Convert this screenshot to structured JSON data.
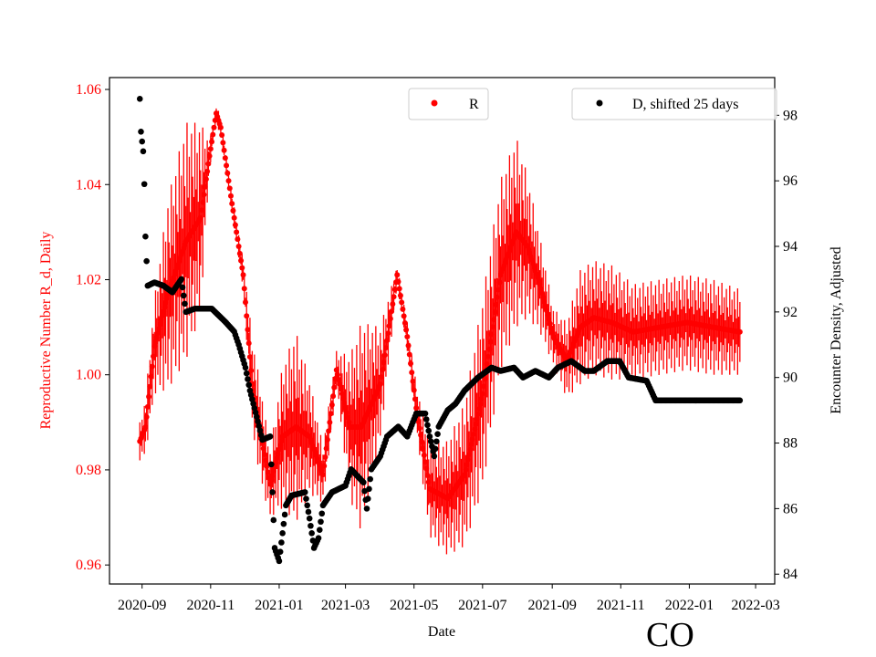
{
  "chart_data": {
    "type": "scatter",
    "xlabel": "Date",
    "ylabel_left": "Reproductive Number R_d, Daily",
    "ylabel_right": "Encounter Density, Adjusted",
    "annotation": "CO",
    "xlim": [
      "2020-08-03",
      "2022-03-18"
    ],
    "ylim_left": [
      0.956,
      1.0625
    ],
    "ylim_right": [
      83.7,
      99.15
    ],
    "x_ticks": [
      "2020-09",
      "2020-11",
      "2021-01",
      "2021-03",
      "2021-05",
      "2021-07",
      "2021-09",
      "2021-11",
      "2022-01",
      "2022-03"
    ],
    "y_ticks_left": [
      "0.96",
      "0.98",
      "1.00",
      "1.02",
      "1.04",
      "1.06"
    ],
    "y_ticks_right": [
      "84",
      "86",
      "88",
      "90",
      "92",
      "94",
      "96",
      "98"
    ],
    "colors": {
      "R": "#ff0000",
      "D": "#000000",
      "left_axis": "#ff0000"
    },
    "legend": [
      {
        "label": "R",
        "placement": "upper-center"
      },
      {
        "label": "D, shifted 25 days",
        "placement": "upper-right"
      }
    ],
    "series": [
      {
        "name": "R",
        "axis": "left",
        "has_error_bars": true,
        "points": [
          [
            "2020-08-30",
            0.986,
            0.004
          ],
          [
            "2020-09-04",
            0.989,
            0.006
          ],
          [
            "2020-09-12",
            1.006,
            0.01
          ],
          [
            "2020-09-24",
            1.017,
            0.02
          ],
          [
            "2020-10-10",
            1.028,
            0.025
          ],
          [
            "2020-10-23",
            1.033,
            0.02
          ],
          [
            "2020-10-31",
            1.046,
            0.003
          ],
          [
            "2020-11-06",
            1.055,
            0.002
          ],
          [
            "2020-11-10",
            1.052,
            0.002
          ],
          [
            "2020-11-20",
            1.036,
            0.002
          ],
          [
            "2020-11-30",
            1.021,
            0.003
          ],
          [
            "2020-12-08",
            0.998,
            0.01
          ],
          [
            "2020-12-16",
            0.987,
            0.01
          ],
          [
            "2020-12-24",
            0.977,
            0.007
          ],
          [
            "2021-01-04",
            0.987,
            0.015
          ],
          [
            "2021-01-16",
            0.989,
            0.02
          ],
          [
            "2021-01-28",
            0.987,
            0.012
          ],
          [
            "2021-02-09",
            0.979,
            0.006
          ],
          [
            "2021-02-21",
            1.001,
            0.004
          ],
          [
            "2021-03-05",
            0.989,
            0.015
          ],
          [
            "2021-03-15",
            0.989,
            0.022
          ],
          [
            "2021-04-01",
            0.998,
            0.012
          ],
          [
            "2021-04-16",
            1.021,
            0.002
          ],
          [
            "2021-04-25",
            1.008,
            0.003
          ],
          [
            "2021-05-03",
            0.993,
            0.005
          ],
          [
            "2021-05-15",
            0.976,
            0.01
          ],
          [
            "2021-05-31",
            0.974,
            0.012
          ],
          [
            "2021-06-15",
            0.979,
            0.015
          ],
          [
            "2021-07-01",
            0.996,
            0.02
          ],
          [
            "2021-07-17",
            1.021,
            0.02
          ],
          [
            "2021-07-31",
            1.03,
            0.02
          ],
          [
            "2021-08-10",
            1.027,
            0.015
          ],
          [
            "2021-08-21",
            1.019,
            0.01
          ],
          [
            "2021-09-02",
            1.008,
            0.006
          ],
          [
            "2021-09-14",
            1.003,
            0.008
          ],
          [
            "2021-09-26",
            1.01,
            0.012
          ],
          [
            "2021-10-08",
            1.012,
            0.012
          ],
          [
            "2021-10-24",
            1.011,
            0.012
          ],
          [
            "2021-11-12",
            1.009,
            0.01
          ],
          [
            "2021-12-06",
            1.01,
            0.01
          ],
          [
            "2021-12-30",
            1.011,
            0.01
          ],
          [
            "2022-01-22",
            1.01,
            0.01
          ],
          [
            "2022-02-15",
            1.009,
            0.009
          ]
        ]
      },
      {
        "name": "D, shifted 25 days",
        "axis": "right",
        "points": [
          [
            "2020-08-30",
            98.5
          ],
          [
            "2020-08-31",
            97.5
          ],
          [
            "2020-09-02",
            96.9
          ],
          [
            "2020-09-03",
            95.9
          ],
          [
            "2020-09-04",
            94.3
          ],
          [
            "2020-09-06",
            92.8
          ],
          [
            "2020-09-12",
            92.9
          ],
          [
            "2020-09-20",
            92.8
          ],
          [
            "2020-09-28",
            92.6
          ],
          [
            "2020-10-06",
            93.0
          ],
          [
            "2020-10-10",
            92.0
          ],
          [
            "2020-10-18",
            92.1
          ],
          [
            "2020-11-02",
            92.1
          ],
          [
            "2020-11-14",
            91.7
          ],
          [
            "2020-11-22",
            91.4
          ],
          [
            "2020-11-26",
            91.0
          ],
          [
            "2020-12-02",
            90.3
          ],
          [
            "2020-12-06",
            89.6
          ],
          [
            "2020-12-12",
            88.8
          ],
          [
            "2020-12-17",
            88.1
          ],
          [
            "2020-12-24",
            88.2
          ],
          [
            "2020-12-28",
            84.8
          ],
          [
            "2021-01-01",
            84.4
          ],
          [
            "2021-01-07",
            86.1
          ],
          [
            "2021-01-12",
            86.4
          ],
          [
            "2021-01-24",
            86.5
          ],
          [
            "2021-01-28",
            85.7
          ],
          [
            "2021-02-01",
            84.8
          ],
          [
            "2021-02-05",
            85.1
          ],
          [
            "2021-02-09",
            86.1
          ],
          [
            "2021-02-17",
            86.5
          ],
          [
            "2021-03-01",
            86.7
          ],
          [
            "2021-03-06",
            87.2
          ],
          [
            "2021-03-17",
            86.8
          ],
          [
            "2021-03-20",
            86.0
          ],
          [
            "2021-03-24",
            87.2
          ],
          [
            "2021-04-01",
            87.6
          ],
          [
            "2021-04-07",
            88.2
          ],
          [
            "2021-04-17",
            88.5
          ],
          [
            "2021-04-25",
            88.2
          ],
          [
            "2021-05-03",
            88.9
          ],
          [
            "2021-05-11",
            88.9
          ],
          [
            "2021-05-15",
            88.2
          ],
          [
            "2021-05-19",
            87.6
          ],
          [
            "2021-05-23",
            88.5
          ],
          [
            "2021-05-31",
            89.0
          ],
          [
            "2021-06-07",
            89.2
          ],
          [
            "2021-06-15",
            89.6
          ],
          [
            "2021-06-27",
            90.0
          ],
          [
            "2021-07-09",
            90.3
          ],
          [
            "2021-07-17",
            90.2
          ],
          [
            "2021-07-29",
            90.3
          ],
          [
            "2021-08-06",
            90.0
          ],
          [
            "2021-08-17",
            90.2
          ],
          [
            "2021-08-29",
            90.0
          ],
          [
            "2021-09-06",
            90.3
          ],
          [
            "2021-09-18",
            90.5
          ],
          [
            "2021-09-30",
            90.2
          ],
          [
            "2021-10-08",
            90.2
          ],
          [
            "2021-10-20",
            90.5
          ],
          [
            "2021-10-31",
            90.5
          ],
          [
            "2021-11-08",
            90.0
          ],
          [
            "2021-11-24",
            89.9
          ],
          [
            "2021-12-02",
            89.3
          ],
          [
            "2022-02-15",
            89.3
          ]
        ]
      }
    ]
  }
}
